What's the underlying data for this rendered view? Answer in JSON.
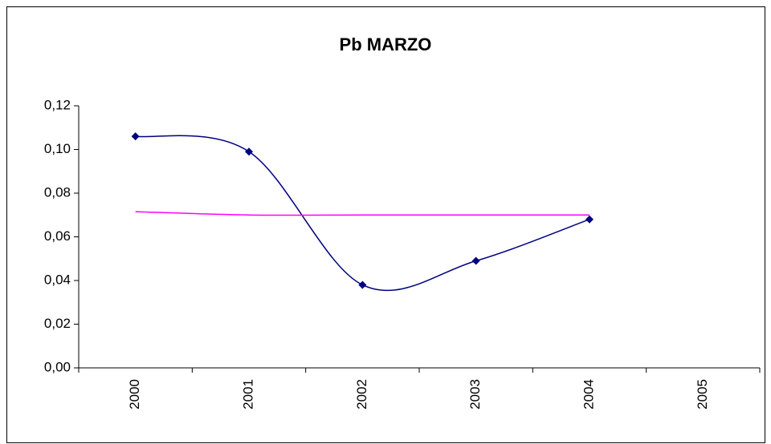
{
  "chart_data": {
    "type": "line",
    "title": "Pb MARZO",
    "categories": [
      "2000",
      "2001",
      "2002",
      "2003",
      "2004",
      "2005"
    ],
    "series": [
      {
        "color": "#000080",
        "marker": "diamond",
        "smooth": true,
        "values": [
          0.106,
          0.099,
          0.038,
          0.049,
          0.068,
          null
        ]
      },
      {
        "color": "#ff00ff",
        "marker": "none",
        "smooth": true,
        "values": [
          0.0715,
          0.07,
          0.07,
          0.07,
          0.07,
          null
        ]
      }
    ],
    "ylim": [
      0,
      0.12
    ],
    "yticks": [
      {
        "value": 0,
        "label": "0,00"
      },
      {
        "value": 0.02,
        "label": "0,02"
      },
      {
        "value": 0.04,
        "label": "0,04"
      },
      {
        "value": 0.06,
        "label": "0,06"
      },
      {
        "value": 0.08,
        "label": "0,08"
      },
      {
        "value": 0.1,
        "label": "0,10"
      },
      {
        "value": 0.12,
        "label": "0,12"
      }
    ],
    "grid": false
  }
}
